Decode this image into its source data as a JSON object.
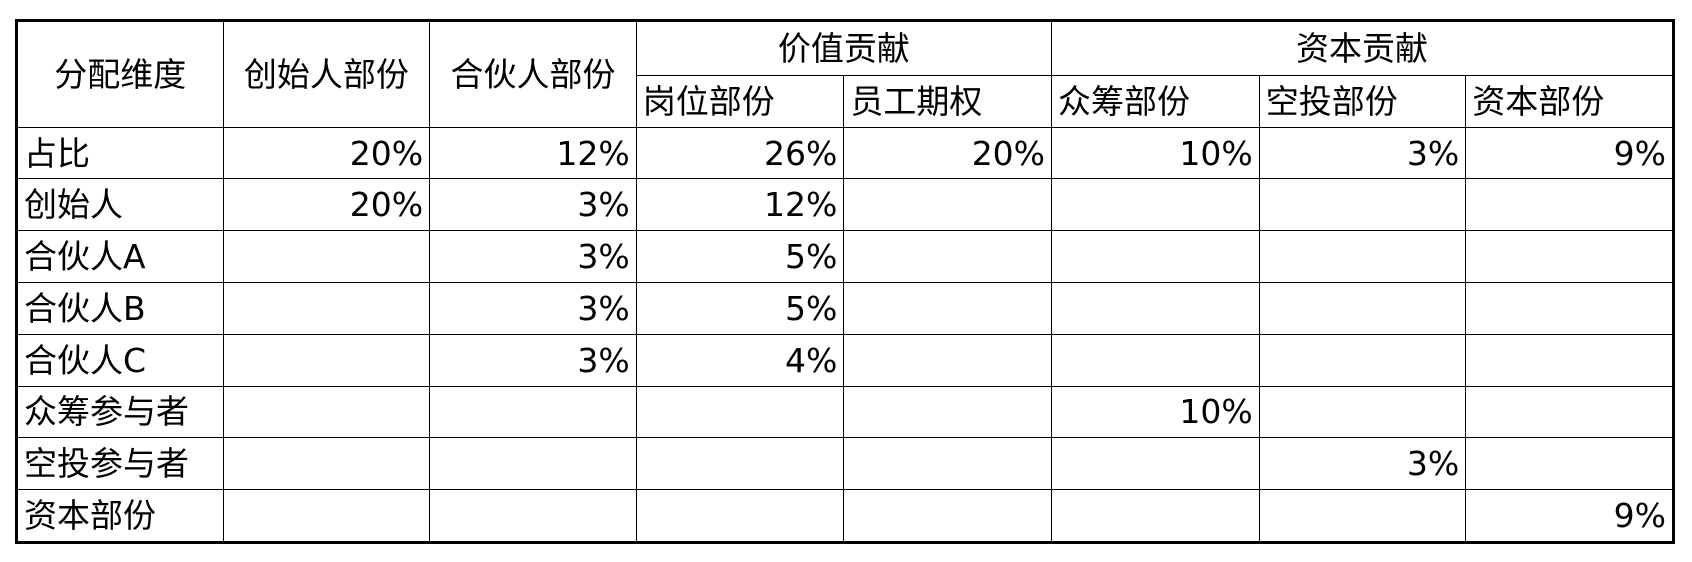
{
  "headers": {
    "dimension": "分配维度",
    "founder_part": "创始人部份",
    "partner_part": "合伙人部份",
    "value_group": "价值贡献",
    "capital_group": "资本贡献",
    "position_part": "岗位部份",
    "employee_option": "员工期权",
    "crowdfund_part": "众筹部份",
    "airdrop_part": "空投部份",
    "capital_part": "资本部份"
  },
  "rows": [
    {
      "label": "占比",
      "cells": [
        "20%",
        "12%",
        "26%",
        "20%",
        "10%",
        "3%",
        "9%"
      ]
    },
    {
      "label": "创始人",
      "cells": [
        "20%",
        "3%",
        "12%",
        "",
        "",
        "",
        ""
      ]
    },
    {
      "label": "合伙人A",
      "cells": [
        "",
        "3%",
        "5%",
        "",
        "",
        "",
        ""
      ]
    },
    {
      "label": "合伙人B",
      "cells": [
        "",
        "3%",
        "5%",
        "",
        "",
        "",
        ""
      ]
    },
    {
      "label": "合伙人C",
      "cells": [
        "",
        "3%",
        "4%",
        "",
        "",
        "",
        ""
      ]
    },
    {
      "label": "众筹参与者",
      "cells": [
        "",
        "",
        "",
        "",
        "10%",
        "",
        ""
      ]
    },
    {
      "label": "空投参与者",
      "cells": [
        "",
        "",
        "",
        "",
        "",
        "3%",
        ""
      ]
    },
    {
      "label": "资本部份",
      "cells": [
        "",
        "",
        "",
        "",
        "",
        "",
        "9%"
      ]
    }
  ]
}
